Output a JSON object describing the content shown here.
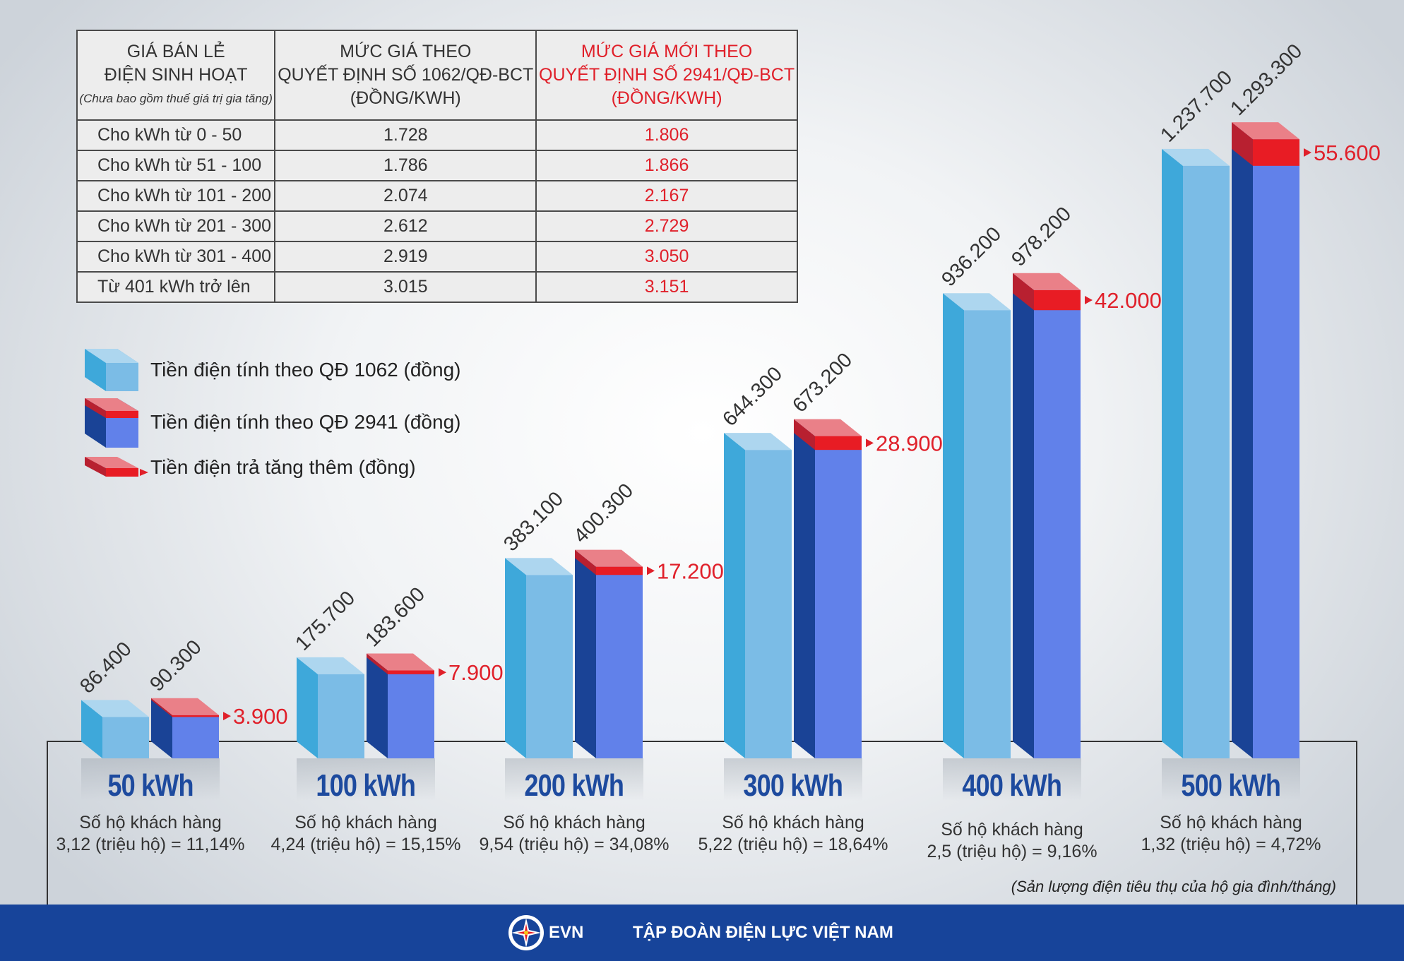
{
  "table": {
    "headers": [
      [
        "GIÁ BÁN LẺ",
        "ĐIỆN SINH HOẠT",
        "(Chưa bao gồm thuế giá trị gia tăng)"
      ],
      [
        "MỨC GIÁ THEO",
        "QUYẾT ĐỊNH SỐ 1062/QĐ-BCT",
        "(ĐỒNG/KWH)"
      ],
      [
        "MỨC GIÁ MỚI THEO",
        "QUYẾT ĐỊNH SỐ 2941/QĐ-BCT",
        "(ĐỒNG/KWH)"
      ]
    ],
    "rows": [
      [
        "Cho kWh từ 0 - 50",
        "1.728",
        "1.806"
      ],
      [
        "Cho kWh từ  51 - 100",
        "1.786",
        "1.866"
      ],
      [
        "Cho kWh từ 101 - 200",
        "2.074",
        "2.167"
      ],
      [
        "Cho kWh từ 201 - 300",
        "2.612",
        "2.729"
      ],
      [
        "Cho kWh từ 301 - 400",
        "2.919",
        "3.050"
      ],
      [
        "Từ 401 kWh trở lên",
        "3.015",
        "3.151"
      ]
    ]
  },
  "legend": [
    "Tiền điện tính theo QĐ 1062 (đồng)",
    "Tiền điện tính theo QĐ 2941 (đồng)",
    "Tiền điện trả tăng thêm (đồng)"
  ],
  "chart_data": {
    "type": "bar",
    "categories": [
      "50 kWh",
      "100 kWh",
      "200 kWh",
      "300 kWh",
      "400 kWh",
      "500 kWh"
    ],
    "series": [
      {
        "name": "Tiền điện tính theo QĐ 1062 (đồng)",
        "values": [
          86400,
          175700,
          383100,
          644300,
          936200,
          1237700
        ],
        "labels": [
          "86.400",
          "175.700",
          "383.100",
          "644.300",
          "936.200",
          "1.237.700"
        ]
      },
      {
        "name": "Tiền điện tính theo QĐ 2941 (đồng)",
        "values": [
          90300,
          183600,
          400300,
          673200,
          978200,
          1293300
        ],
        "labels": [
          "90.300",
          "183.600",
          "400.300",
          "673.200",
          "978.200",
          "1.293.300"
        ]
      },
      {
        "name": "Tiền điện trả tăng thêm (đồng)",
        "values": [
          3900,
          7900,
          17200,
          28900,
          42000,
          55600
        ],
        "labels": [
          "3.900",
          "7.900",
          "17.200",
          "28.900",
          "42.000",
          "55.600"
        ]
      }
    ],
    "households_title": "Số hộ khách hàng",
    "households": [
      "3,12 (triệu hộ) = 11,14%",
      "4,24 (triệu hộ) = 15,15%",
      "9,54 (triệu hộ) = 34,08%",
      "5,22 (triệu hộ) = 18,64%",
      "2,5 (triệu hộ) = 9,16%",
      "1,32 (triệu hộ) = 4,72%"
    ],
    "footnote": "(Sản lượng điện tiêu thụ của hộ gia đình/tháng)",
    "colors": {
      "old_front": "#7bbce6",
      "old_side": "#3ea8da",
      "old_top": "#add6ef",
      "new_front": "#6181ea",
      "new_side": "#1a4396",
      "red": "#e81c24",
      "red_top": "#ea8088",
      "label_red": "#e0202a"
    }
  },
  "footer": {
    "logo_text": "EVN",
    "org": "TẬP ĐOÀN ĐIỆN LỰC VIỆT NAM",
    "band_color": "#17449a"
  }
}
